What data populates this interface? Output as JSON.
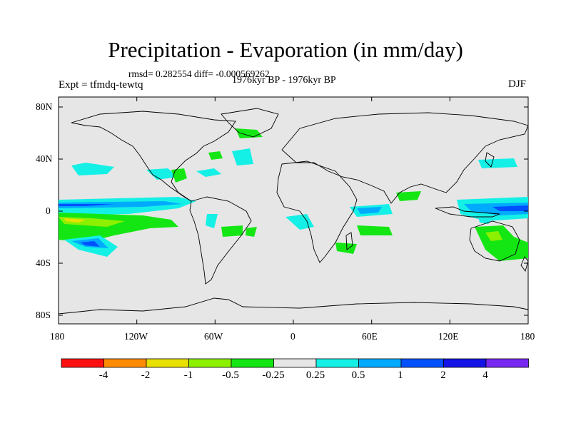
{
  "figure": {
    "title": "Precipitation - Evaporation (in mm/day)",
    "stats_line": "rmsd= 0.282554  diff= -0.000569262",
    "period": "1976kyr BP - 1976kyr BP",
    "experiment": "Expt = tfmdq-tewtq",
    "season": "DJF"
  },
  "axes": {
    "lat_ticks": [
      "80N",
      "40N",
      "0",
      "40S",
      "80S"
    ],
    "lon_ticks": [
      "180",
      "120W",
      "60W",
      "0",
      "60E",
      "120E",
      "180"
    ]
  },
  "colorbar": {
    "labels": [
      "-4",
      "-2",
      "-1",
      "-0.5",
      "-0.25",
      "0.25",
      "0.5",
      "1",
      "2",
      "4"
    ],
    "colors": [
      "#ff1010",
      "#ff8c00",
      "#e8e000",
      "#8cf000",
      "#14e614",
      "#e6e6e6",
      "#14f0e6",
      "#00aaff",
      "#0050ff",
      "#1414e6",
      "#7828f0"
    ]
  },
  "map": {
    "background_color": "#e6e6e6",
    "features": [
      {
        "type": "band",
        "value_class": "0.25-0.5",
        "region": "east pacific equatorial"
      },
      {
        "type": "band",
        "value_class": "1-2",
        "region": "ITCZ east pacific"
      },
      {
        "type": "band",
        "value_class": "-0.5 to -0.25",
        "region": "south-east pacific"
      },
      {
        "type": "patch",
        "value_class": "-0.5 to -0.25",
        "region": "western australia"
      },
      {
        "type": "patch",
        "value_class": "0.5-1",
        "region": "maritime continent"
      }
    ]
  }
}
